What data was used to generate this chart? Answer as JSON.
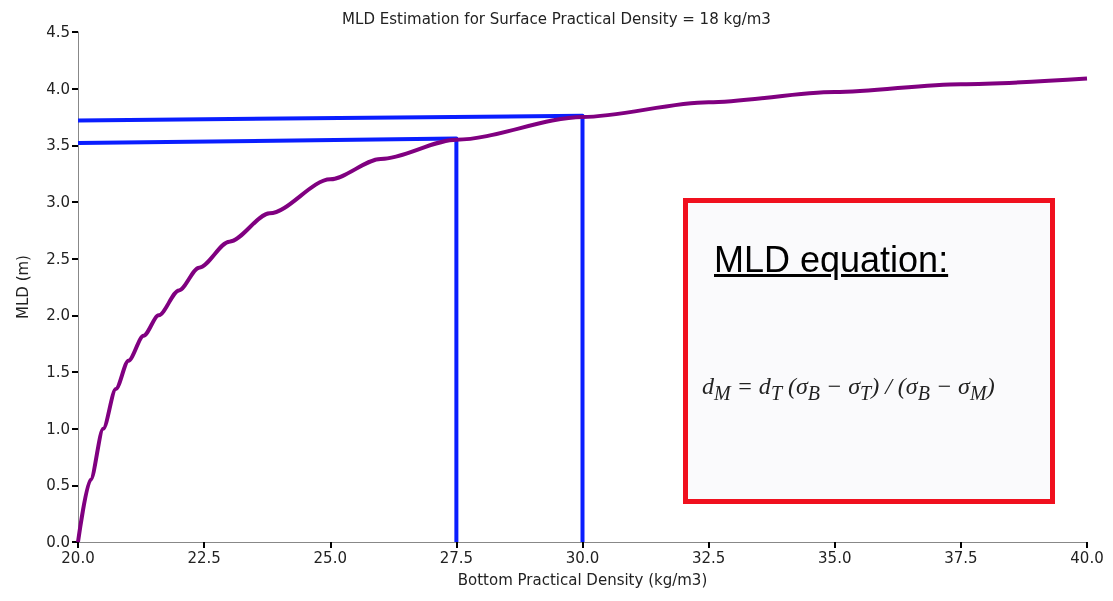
{
  "chart_data": {
    "type": "line",
    "title": "MLD Estimation for Surface Practical Density = 18 kg/m3",
    "xlabel": "Bottom Practical Density (kg/m3)",
    "ylabel": "MLD (m)",
    "xlim": [
      20,
      40
    ],
    "xticks": [
      {
        "value": 20,
        "label": "20.0"
      },
      22.5,
      {
        "value": 25,
        "label": "25.0"
      },
      27.5,
      {
        "value": 30,
        "label": "30.0"
      },
      32.5,
      {
        "value": 35,
        "label": "35.0"
      },
      37.5,
      {
        "value": 40,
        "label": "40.0"
      }
    ],
    "ylim": [
      0,
      4.5
    ],
    "yticks": [
      {
        "value": 0,
        "label": "0.0"
      },
      0.5,
      {
        "value": 1,
        "label": "1.0"
      },
      1.5,
      {
        "value": 2,
        "label": "2.0"
      },
      2.5,
      {
        "value": 3,
        "label": "3.0"
      },
      3.5,
      {
        "value": 4,
        "label": "4.0"
      },
      4.5
    ],
    "grid": false,
    "marker": "none",
    "series": [
      {
        "color": "#800080",
        "x": [
          20,
          20.25,
          20.5,
          20.75,
          21,
          21.3,
          21.6,
          22,
          22.4,
          23,
          23.8,
          25,
          26,
          27.5,
          30,
          32.5,
          35,
          37.5,
          40
        ],
        "values": [
          0,
          0.55,
          1.0,
          1.35,
          1.6,
          1.82,
          2.0,
          2.22,
          2.42,
          2.65,
          2.9,
          3.2,
          3.38,
          3.55,
          3.75,
          3.88,
          3.97,
          4.04,
          4.09
        ]
      },
      {
        "color": "#0a1eff",
        "x": [
          20,
          27.5,
          27.5
        ],
        "values": [
          3.52,
          3.56,
          0
        ]
      },
      {
        "color": "#0a1eff",
        "x": [
          20,
          30,
          30
        ],
        "values": [
          3.72,
          3.76,
          0
        ]
      }
    ],
    "annotations": [
      "MLD equation:",
      "d$_{M}$ = d$_{T}$ (σ$_{B}$ − σ$_{T}$) / (σ$_{B}$ − σ$_{M}$)"
    ]
  }
}
